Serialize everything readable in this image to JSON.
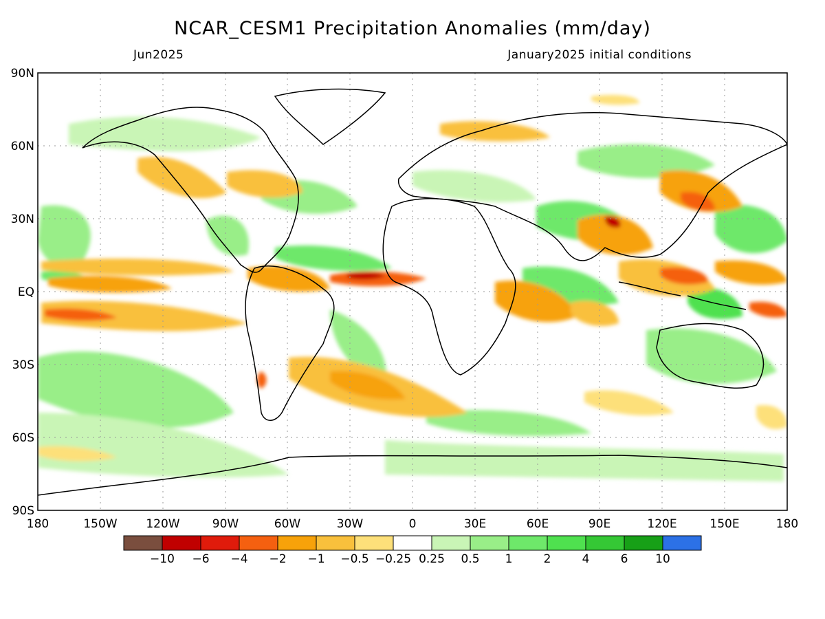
{
  "map": {
    "title": "NCAR_CESM1 Precipitation Anomalies (mm/day)",
    "valid_month": "Jun2025",
    "init_label": "January2025 initial conditions",
    "lat_labels": [
      "90N",
      "60N",
      "30N",
      "EQ",
      "30S",
      "60S",
      "90S"
    ],
    "lon_labels": [
      "180",
      "150W",
      "120W",
      "90W",
      "60W",
      "30W",
      "0",
      "30E",
      "60E",
      "90E",
      "120E",
      "150E",
      "180"
    ]
  },
  "colorbar": {
    "colors": [
      "#7a4e3e",
      "#c00000",
      "#e01b0b",
      "#f56010",
      "#f7a20a",
      "#f9c03c",
      "#fde07a",
      "#ffffff",
      "#c9f5b6",
      "#99ee88",
      "#6ee86a",
      "#4fe14f",
      "#35c835",
      "#17a017",
      "#2c71e6"
    ],
    "tick_labels": [
      "-10",
      "-6",
      "-4",
      "-2",
      "-1",
      "-0.5",
      "-0.25",
      "0.25",
      "0.5",
      "1",
      "2",
      "4",
      "6",
      "10"
    ]
  },
  "colors": {
    "land_outline": "#000000",
    "grid": "#999999"
  }
}
